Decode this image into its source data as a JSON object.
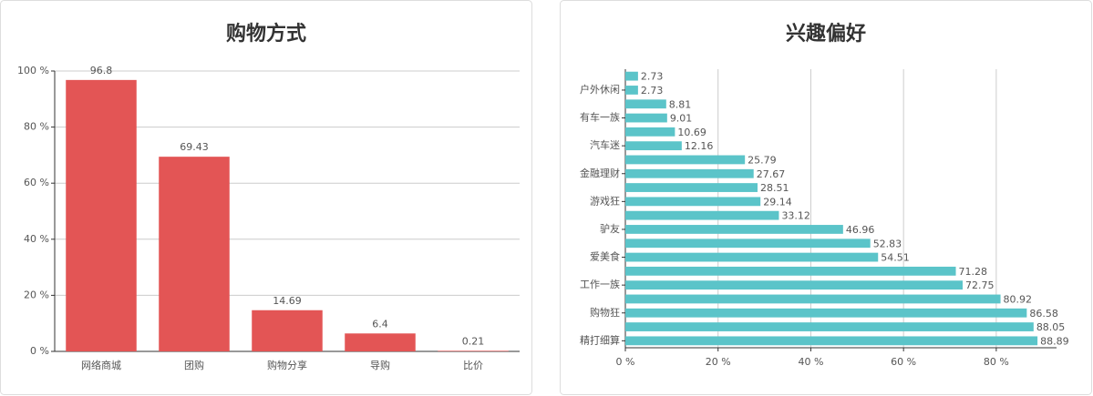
{
  "chart_data": [
    {
      "type": "bar",
      "orientation": "vertical",
      "title": "购物方式",
      "categories": [
        "网络商城",
        "团购",
        "购物分享",
        "导购",
        "比价"
      ],
      "values": [
        96.8,
        69.43,
        14.69,
        6.4,
        0.21
      ],
      "color": "#e35555",
      "ylim": [
        0,
        100
      ],
      "yticks": [
        {
          "value": 0,
          "label": "0 %"
        },
        {
          "value": 20,
          "label": "20 %"
        },
        {
          "value": 40,
          "label": "40 %"
        },
        {
          "value": 60,
          "label": "60 %"
        },
        {
          "value": 80,
          "label": "80 %"
        },
        {
          "value": 100,
          "label": "100 %"
        }
      ],
      "grid": true
    },
    {
      "type": "bar",
      "orientation": "horizontal",
      "title": "兴趣偏好",
      "categories": [
        null,
        "户外休闲",
        null,
        "有车一族",
        null,
        "汽车迷",
        null,
        "金融理财",
        null,
        "游戏狂",
        null,
        "驴友",
        null,
        "爱美食",
        null,
        "工作一族",
        null,
        "购物狂",
        null,
        "精打细算"
      ],
      "values": [
        2.73,
        2.73,
        8.81,
        9.01,
        10.69,
        12.16,
        25.79,
        27.67,
        28.51,
        29.14,
        33.12,
        46.96,
        52.83,
        54.51,
        71.28,
        72.75,
        80.92,
        86.58,
        88.05,
        88.89
      ],
      "color": "#5bc4c9",
      "xlim": [
        0,
        93
      ],
      "xticks": [
        {
          "value": 0,
          "label": "0 %"
        },
        {
          "value": 20,
          "label": "20 %"
        },
        {
          "value": 40,
          "label": "40 %"
        },
        {
          "value": 60,
          "label": "60 %"
        },
        {
          "value": 80,
          "label": "80 %"
        }
      ],
      "grid": true
    }
  ]
}
